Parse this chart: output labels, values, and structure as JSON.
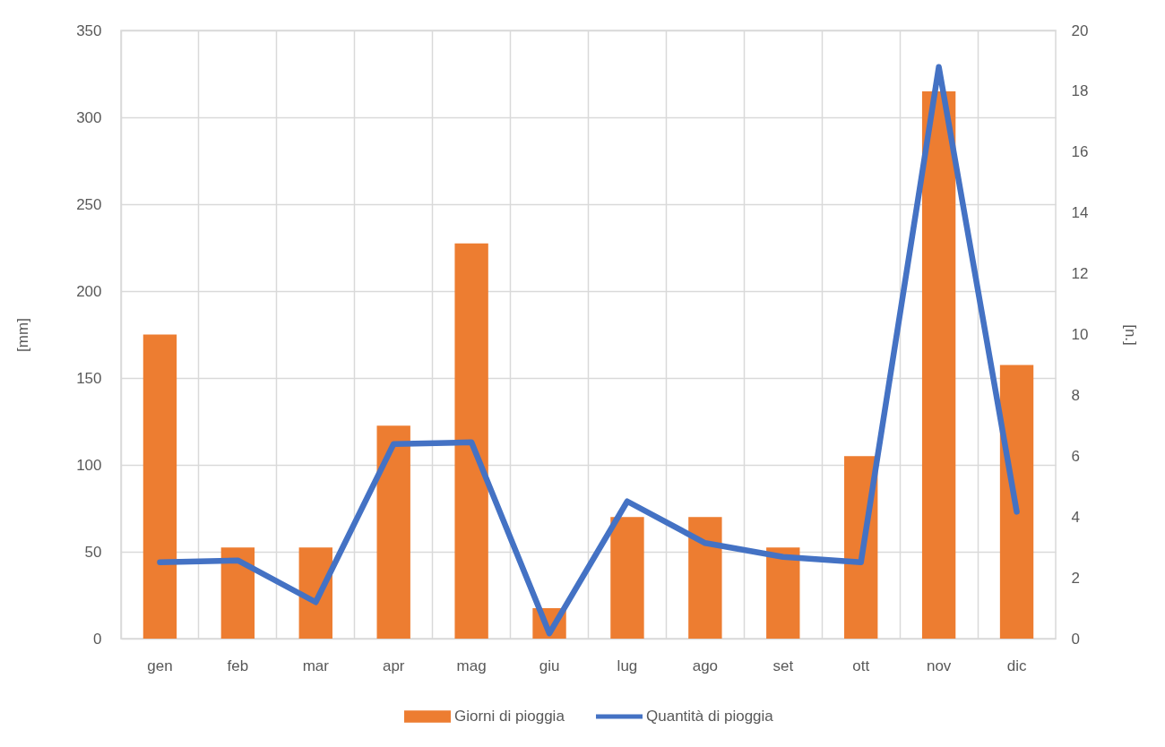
{
  "chart_data": {
    "type": "bar",
    "categories": [
      "gen",
      "feb",
      "mar",
      "apr",
      "mag",
      "giu",
      "lug",
      "ago",
      "set",
      "ott",
      "nov",
      "dic"
    ],
    "series": [
      {
        "name": "Giorni di pioggia",
        "axis": "y2",
        "color": "#ed7d31",
        "values": [
          10,
          3,
          3,
          7,
          13,
          1,
          4,
          4,
          3,
          6,
          18,
          9
        ]
      },
      {
        "name": "Quantità di pioggia",
        "type": "line",
        "color": "#4472c4",
        "values": [
          44,
          45,
          21,
          112,
          113,
          3,
          79,
          55,
          47,
          44,
          329,
          73
        ]
      }
    ],
    "ylabel": "[mm]",
    "y2label": "[n.]",
    "ylim": [
      0,
      350
    ],
    "yticks": [
      0,
      50,
      100,
      150,
      200,
      250,
      300,
      350
    ],
    "y2lim": [
      0,
      20
    ],
    "y2ticks": [
      0,
      2,
      4,
      6,
      8,
      10,
      12,
      14,
      16,
      18,
      20
    ],
    "grid": true,
    "legend": "bottom"
  }
}
